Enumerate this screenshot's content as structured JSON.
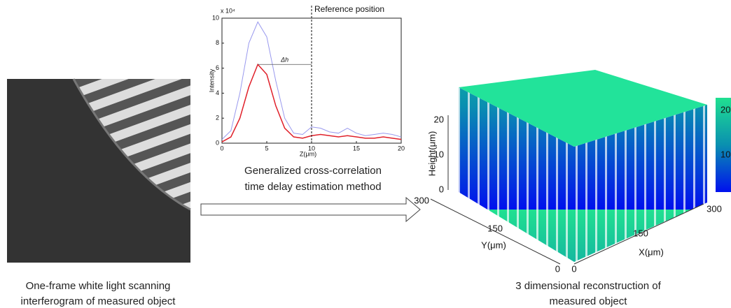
{
  "chart_data": {
    "type": "line",
    "x": [
      0,
      1,
      2,
      3,
      4,
      5,
      6,
      7,
      8,
      9,
      10,
      11,
      12,
      13,
      14,
      15,
      16,
      17,
      18,
      19,
      20
    ],
    "series": [
      {
        "color": "#9999ee",
        "values": [
          0.3,
          1,
          4,
          8,
          9.7,
          8.5,
          5,
          2,
          0.8,
          0.7,
          1.3,
          1.2,
          0.9,
          0.8,
          1.2,
          0.8,
          0.6,
          0.7,
          0.8,
          0.7,
          0.5
        ]
      },
      {
        "color": "#e0202a",
        "values": [
          0.1,
          0.5,
          2,
          4.5,
          6.3,
          5.5,
          3,
          1.2,
          0.5,
          0.4,
          0.6,
          0.7,
          0.6,
          0.5,
          0.6,
          0.5,
          0.4,
          0.4,
          0.5,
          0.4,
          0.3
        ]
      }
    ],
    "xlim": [
      0,
      20
    ],
    "xticks": [
      0,
      5,
      10,
      15,
      20
    ],
    "ylim": [
      0,
      10
    ],
    "yticks": [
      0,
      2,
      4,
      6,
      8,
      10
    ],
    "y_exponent": "x 10⁴",
    "xlabel": "Z(μm)",
    "ylabel": "Intensity",
    "reference_x": 10,
    "reference_label": "Reference position",
    "delta_label": "Δh"
  },
  "left_panel": {
    "caption": [
      "One-frame white light scanning",
      "interferogram of measured object"
    ]
  },
  "middle_panel": {
    "caption": [
      "Generalized cross-correlation",
      "time delay estimation method"
    ]
  },
  "right_panel": {
    "zlabel": "Height(μm)",
    "zticks": [
      20,
      10,
      0
    ],
    "ylabel": "Y(μm)",
    "yticks": [
      300,
      150,
      0
    ],
    "xlabel": "X(μm)",
    "xticks": [
      0,
      150,
      300
    ],
    "colorbar_ticks": [
      20,
      10
    ],
    "caption": [
      "3 dimensional reconstruction of",
      "measured object"
    ]
  }
}
